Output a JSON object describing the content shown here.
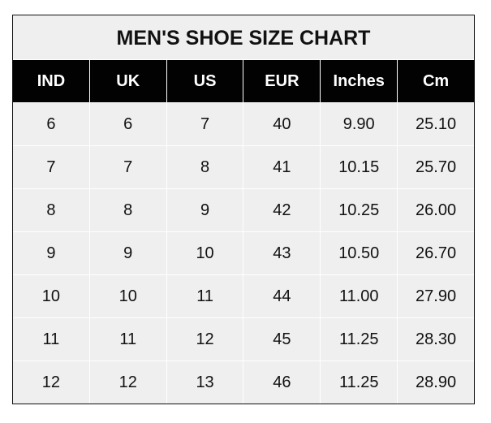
{
  "chart_data": {
    "type": "table",
    "title": "MEN'S SHOE SIZE CHART",
    "columns": [
      "IND",
      "UK",
      "US",
      "EUR",
      "Inches",
      "Cm"
    ],
    "rows": [
      [
        "6",
        "6",
        "7",
        "40",
        "9.90",
        "25.10"
      ],
      [
        "7",
        "7",
        "8",
        "41",
        "10.15",
        "25.70"
      ],
      [
        "8",
        "8",
        "9",
        "42",
        "10.25",
        "26.00"
      ],
      [
        "9",
        "9",
        "10",
        "43",
        "10.50",
        "26.70"
      ],
      [
        "10",
        "10",
        "11",
        "44",
        "11.00",
        "27.90"
      ],
      [
        "11",
        "11",
        "12",
        "45",
        "11.25",
        "28.30"
      ],
      [
        "12",
        "12",
        "13",
        "46",
        "11.25",
        "28.90"
      ]
    ],
    "colors": {
      "header_bg": "#020202",
      "header_text": "#ffffff",
      "body_bg": "#efefef",
      "grid": "#ffffff"
    }
  }
}
